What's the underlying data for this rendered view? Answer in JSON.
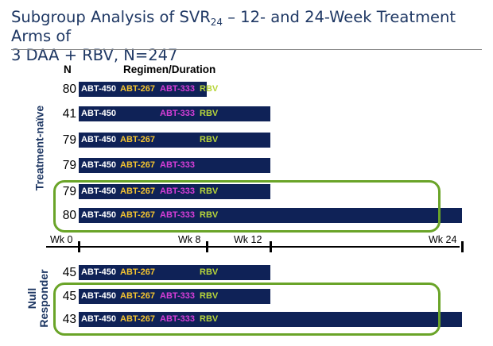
{
  "title": {
    "prefix": "Subgroup Analysis of SVR",
    "sub": "24",
    "line1_rest": " – 12- and 24-Week Treatment Arms of",
    "line2": "3 DAA + RBV, N=247"
  },
  "headers": {
    "n": "N",
    "regimen": "Regimen/Duration"
  },
  "groups": {
    "naive": "Treatment-naïve",
    "null_line1": "Null",
    "null_line2": "Responder"
  },
  "axis": {
    "ticks": [
      "Wk 0",
      "Wk 8",
      "Wk 12",
      "Wk 24"
    ]
  },
  "drugs": {
    "abt450": "ABT-450",
    "abt267": "ABT-267",
    "abt333": "ABT-333",
    "rbv": "RBV"
  },
  "colors": {
    "bar": "#0f2257",
    "abt450": "#ffffff",
    "abt267": "#f4c430",
    "abt333": "#d83ed8",
    "rbv": "#b8d63a",
    "highlight_box": "#6aa428",
    "title": "#1f3864"
  },
  "rows": [
    {
      "n": "80",
      "weeks": 8,
      "drugs": [
        "ABT-450",
        "ABT-267",
        "ABT-333",
        "RBV"
      ]
    },
    {
      "n": "41",
      "weeks": 12,
      "drugs": [
        "ABT-450",
        "ABT-333",
        "RBV"
      ]
    },
    {
      "n": "79",
      "weeks": 12,
      "drugs": [
        "ABT-450",
        "ABT-267",
        "RBV"
      ]
    },
    {
      "n": "79",
      "weeks": 12,
      "drugs": [
        "ABT-450",
        "ABT-267",
        "ABT-333"
      ]
    },
    {
      "n": "79",
      "weeks": 12,
      "drugs": [
        "ABT-450",
        "ABT-267",
        "ABT-333",
        "RBV"
      ]
    },
    {
      "n": "80",
      "weeks": 24,
      "drugs": [
        "ABT-450",
        "ABT-267",
        "ABT-333",
        "RBV"
      ]
    },
    {
      "n": "45",
      "weeks": 12,
      "drugs": [
        "ABT-450",
        "ABT-267",
        "RBV"
      ]
    },
    {
      "n": "45",
      "weeks": 12,
      "drugs": [
        "ABT-450",
        "ABT-267",
        "ABT-333",
        "RBV"
      ]
    },
    {
      "n": "43",
      "weeks": 24,
      "drugs": [
        "ABT-450",
        "ABT-267",
        "ABT-333",
        "RBV"
      ]
    }
  ]
}
